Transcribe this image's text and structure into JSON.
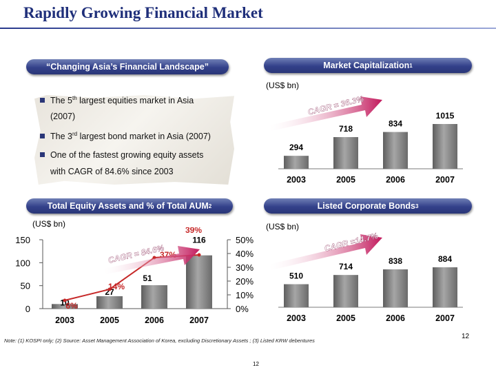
{
  "page": {
    "title": "Rapidly Growing Financial Market",
    "page_number_right": "12",
    "page_number_bottom": "12",
    "footnote": "Note: (1) KOSPI only; (2) Source: Asset Management Association of Korea, excluding Discretionary Assets ; (3) Listed KRW debentures"
  },
  "landscape": {
    "banner": "“Changing Asia’s Financial Landscape”",
    "bullets": [
      {
        "pre": "The 5",
        "sup": "th",
        "post": " largest equities market in Asia"
      },
      {
        "pre": "(2007)",
        "sup": "",
        "post": ""
      },
      {
        "pre": "The 3",
        "sup": "rd",
        "post": " largest bond market  in Asia (2007)"
      },
      {
        "pre": "One of the fastest growing equity assets",
        "sup": "",
        "post": ""
      },
      {
        "pre": "with CAGR of 84.6% since 2003",
        "sup": "",
        "post": ""
      }
    ]
  },
  "chart_data": [
    {
      "type": "bar",
      "title": "Market Capitalization",
      "title_sup": "1",
      "unit": "(US$ bn)",
      "categories": [
        "2003",
        "2005",
        "2006",
        "2007"
      ],
      "values": [
        294,
        718,
        834,
        1015
      ],
      "value_labels": [
        "294",
        "718",
        "834",
        "1015"
      ],
      "annotation": "CAGR = 36.3%",
      "colors": {
        "bar": "#8a8a8a",
        "arrow": "#c2185b"
      }
    },
    {
      "type": "bar",
      "title": "Total Equity Assets and % of Total AUM",
      "title_sup": "2",
      "unit": "(US$ bn)",
      "categories": [
        "2003",
        "2005",
        "2006",
        "2007"
      ],
      "values": [
        10,
        27,
        51,
        116
      ],
      "value_labels": [
        "10",
        "27",
        "51",
        "116"
      ],
      "ylim": [
        0,
        150
      ],
      "yticks": [
        "0",
        "50",
        "100",
        "150"
      ],
      "secondary": {
        "type": "line",
        "values": [
          6,
          14,
          37,
          39
        ],
        "labels": [
          "6%",
          "14%",
          "37%",
          "39%"
        ],
        "ylim": [
          0,
          50
        ],
        "yticks": [
          "0%",
          "10%",
          "20%",
          "30%",
          "40%",
          "50%"
        ]
      },
      "annotation": "CAGR = 84.6%",
      "colors": {
        "bar": "#8a8a8a",
        "line": "#c62828",
        "label": "#c62828"
      }
    },
    {
      "type": "bar",
      "title": "Listed Corporate Bonds",
      "title_sup": "3",
      "unit": "(US$ bn)",
      "categories": [
        "2003",
        "2005",
        "2006",
        "2007"
      ],
      "values": [
        510,
        714,
        838,
        884
      ],
      "value_labels": [
        "510",
        "714",
        "838",
        "884"
      ],
      "annotation": "CAGR =14.7%",
      "colors": {
        "bar": "#8a8a8a",
        "arrow": "#c2185b"
      }
    }
  ]
}
